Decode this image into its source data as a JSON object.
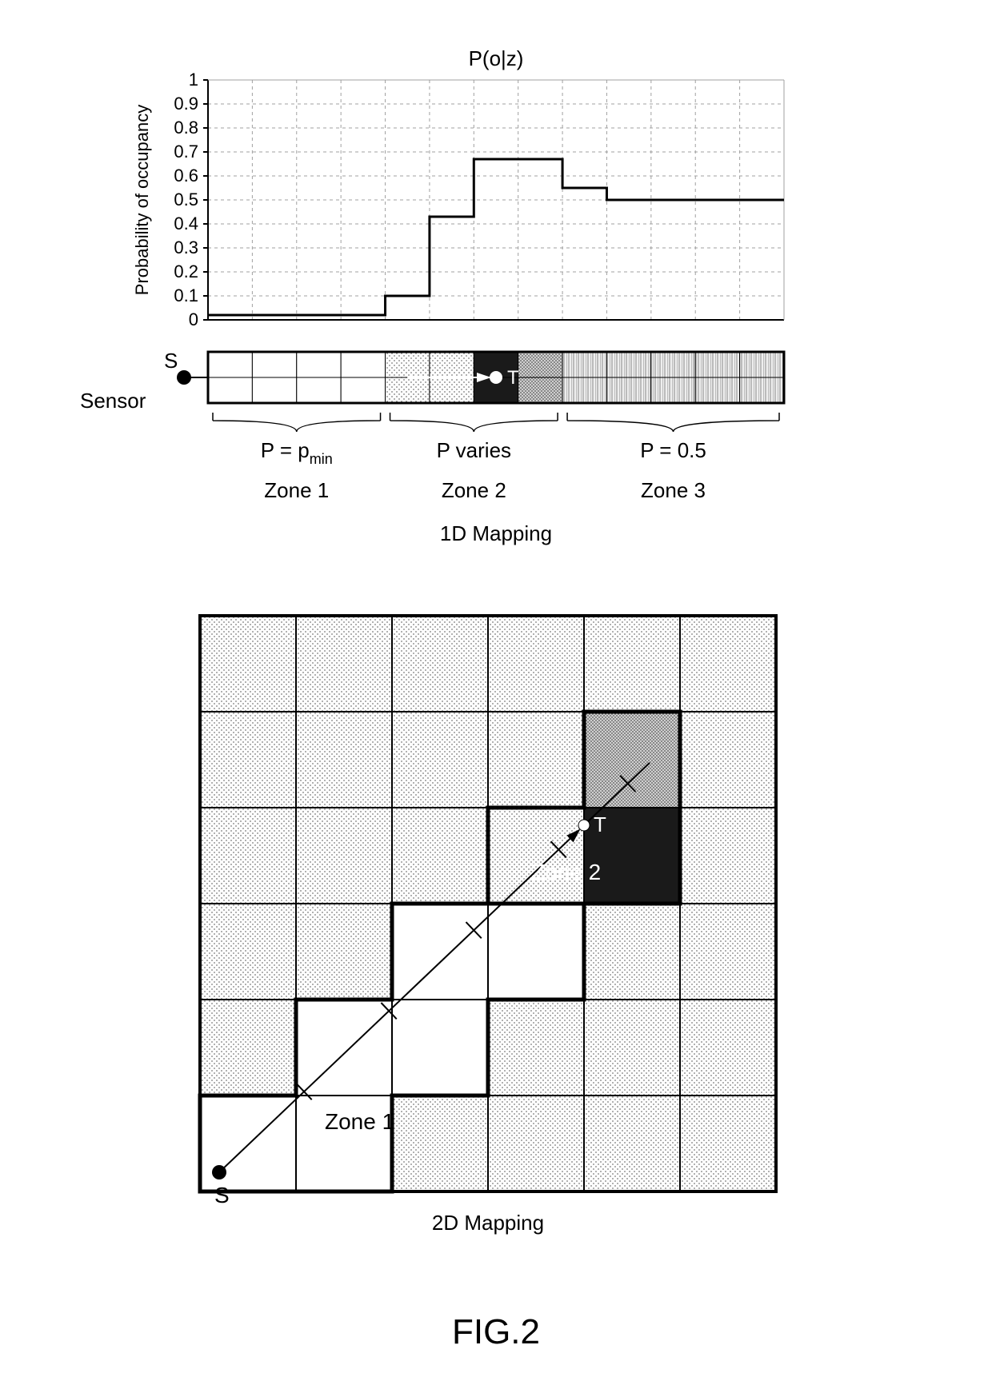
{
  "figure_label": "FIG.2",
  "chart": {
    "type": "step-line",
    "title": "P(o|z)",
    "ylabel": "Probability of occupancy",
    "ylim": [
      0,
      1
    ],
    "ytick_step": 0.1,
    "yticks": [
      "0",
      "0.1",
      "0.2",
      "0.3",
      "0.4",
      "0.5",
      "0.6",
      "0.7",
      "0.8",
      "0.9",
      "1"
    ],
    "x_cells": 13,
    "step_values": [
      0.02,
      0.02,
      0.02,
      0.02,
      0.1,
      0.43,
      0.67,
      0.67,
      0.55,
      0.5,
      0.5,
      0.5,
      0.5
    ],
    "line_color": "#000000",
    "line_width": 3,
    "grid_major_color": "#a0a0a0",
    "grid_minor_dash": "4 4",
    "background_color": "#ffffff",
    "title_fontsize": 26,
    "label_fontsize": 22,
    "tick_fontsize": 22
  },
  "one_d": {
    "label_sensor_S": "S",
    "label_sensor_word": "Sensor",
    "label_target": "T",
    "cells": 13,
    "cell_fill": [
      "#ffffff",
      "#ffffff",
      "#ffffff",
      "#ffffff",
      "dots-light",
      "dots-light",
      "#1a1a1a",
      "dots-med",
      "hatch",
      "hatch",
      "hatch",
      "hatch",
      "hatch"
    ],
    "border_color": "#000000",
    "border_width": 3,
    "target_cell_index": 6,
    "zones": [
      {
        "name": "Zone 1",
        "eq": "P = p",
        "sub": "min",
        "start": 0,
        "end": 4
      },
      {
        "name": "Zone 2",
        "eq": "P varies",
        "sub": "",
        "start": 4,
        "end": 8
      },
      {
        "name": "Zone 3",
        "eq": "P = 0.5",
        "sub": "",
        "start": 8,
        "end": 13
      }
    ],
    "caption": "1D  Mapping",
    "caption_fontsize": 26
  },
  "two_d": {
    "rows": 6,
    "cols": 6,
    "cell_size": 120,
    "default_fill": "dots-light",
    "border_color": "#000000",
    "border_width": 2,
    "zone1_cells": [
      [
        5,
        0
      ],
      [
        5,
        1
      ],
      [
        4,
        1
      ],
      [
        4,
        2
      ],
      [
        3,
        2
      ],
      [
        3,
        3
      ]
    ],
    "zone2_cells": [
      [
        3,
        3
      ],
      [
        2,
        3
      ],
      [
        2,
        4
      ]
    ],
    "zone1_fill": "#ffffff",
    "zone2_dark_cells": [
      [
        2,
        4
      ]
    ],
    "zone2_dark_fill": "#1a1a1a",
    "zone2_gray_cells": [
      [
        1,
        4
      ]
    ],
    "zone2_gray_fill": "dots-med",
    "sensor_pos": [
      5.9,
      0.1
    ],
    "sensor_label": "S",
    "target_pos": [
      2.1,
      4.0
    ],
    "target_label": "T",
    "zone1_label": "Zone 1",
    "zone2_label": "Zone 2",
    "caption": "2D  Mapping",
    "caption_fontsize": 26,
    "thick_border_width": 5,
    "ray_color": "#000000",
    "ray_width": 2,
    "tick_count": 4
  }
}
